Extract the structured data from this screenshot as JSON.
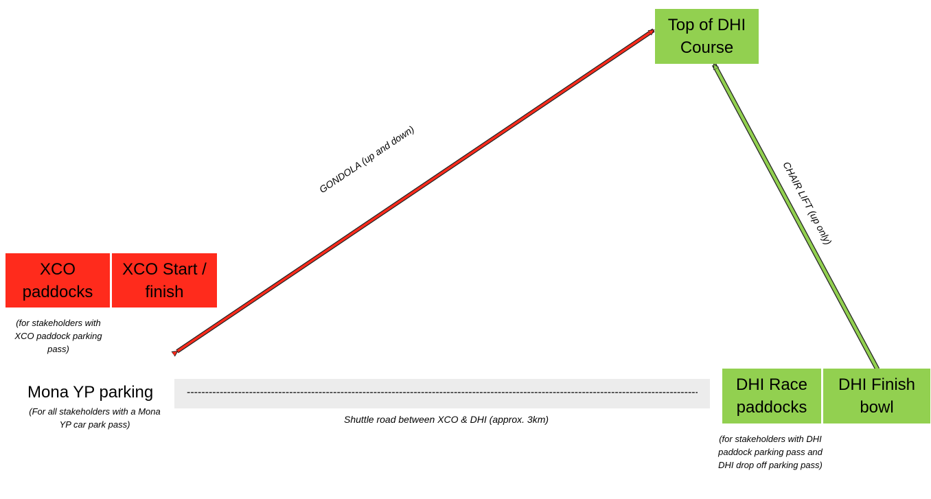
{
  "nodes": {
    "top_dhi": {
      "label": "Top of DHI Course",
      "color": "#92d050"
    },
    "xco_paddocks": {
      "label": "XCO paddocks",
      "color": "#ff2b1c",
      "note": "(for stakeholders with XCO paddock parking pass)"
    },
    "xco_start": {
      "label": "XCO Start / finish",
      "color": "#ff2b1c"
    },
    "mona": {
      "label": "Mona YP parking",
      "note": "(For all stakeholders with a Mona YP car park pass)"
    },
    "dhi_paddocks": {
      "label": "DHI Race paddocks",
      "color": "#92d050",
      "note": "(for stakeholders with DHI paddock parking pass and DHI drop off parking pass)"
    },
    "dhi_finish": {
      "label": "DHI Finish bowl",
      "color": "#92d050"
    }
  },
  "edges": {
    "gondola": {
      "label": "GONDOLA (up and down)",
      "color": "#ff2b1c"
    },
    "chairlift": {
      "label": "CHAIR LIFT (up only)",
      "color": "#92d050"
    },
    "shuttle": {
      "label": "Shuttle road between XCO & DHI (approx. 3km)"
    }
  }
}
